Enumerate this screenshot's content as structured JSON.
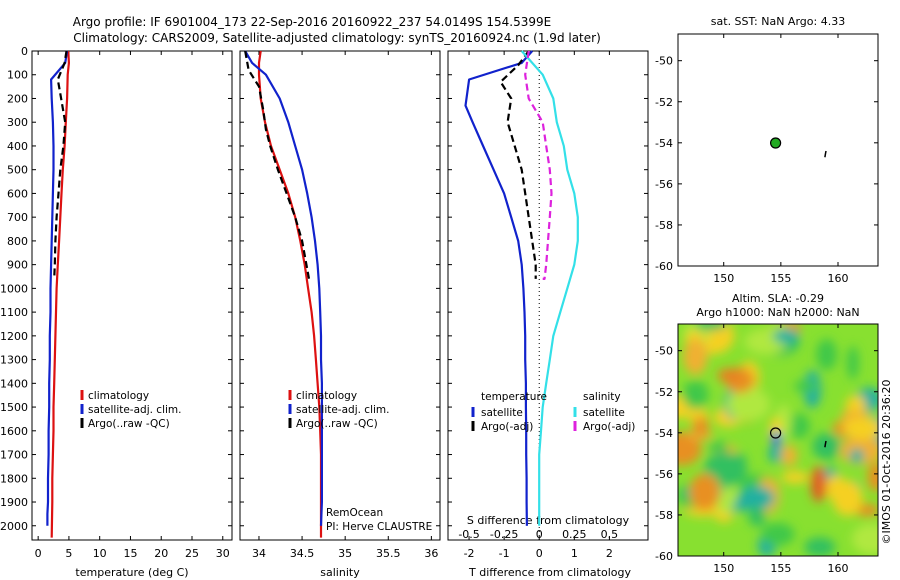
{
  "header": {
    "line1": "Argo profile: IF 6901004_173 22-Sep-2016 20160922_237 54.0149S 154.5399E",
    "line2": "Climatology: CARS2009, Satellite-adjusted climatology: synTS_20160924.nc (1.9d later)"
  },
  "depth_ticks": [
    "0",
    "100",
    "200",
    "300",
    "400",
    "500",
    "600",
    "700",
    "800",
    "900",
    "1000",
    "1100",
    "1200",
    "1300",
    "1400",
    "1500",
    "1600",
    "1700",
    "1800",
    "1900",
    "2000"
  ],
  "colors": {
    "climatology": "#dd1111",
    "satellite": "#1122cc",
    "argo": "#000000",
    "satellite_salinity": "#33e0e8",
    "argo_adj_salinity": "#dd22dd",
    "map_marker": "#22aa22"
  },
  "chart_data": [
    {
      "type": "line",
      "name": "temperature-profile",
      "xlabel": "temperature (deg C)",
      "ylabel": "",
      "xlim": [
        -1,
        31.5
      ],
      "ylim": [
        2060,
        0
      ],
      "xticks": [
        "0",
        "5",
        "10",
        "15",
        "20",
        "25",
        "30"
      ],
      "xtick_values": [
        0,
        5,
        10,
        15,
        20,
        25,
        30
      ],
      "legend": [
        "climatology",
        "satellite-adj. clim.",
        "Argo(..raw -QC)"
      ],
      "legend_placement": "lower-center",
      "series": [
        {
          "name": "climatology",
          "style": "solid",
          "x": [
            4.9,
            5.0,
            4.8,
            4.7,
            4.5,
            4.3,
            4.0,
            3.8,
            3.6,
            3.4,
            3.2,
            3.0,
            2.9,
            2.8,
            2.7,
            2.6,
            2.5,
            2.5,
            2.4,
            2.3,
            2.3,
            2.2
          ],
          "y": [
            0,
            50,
            100,
            200,
            300,
            400,
            500,
            600,
            700,
            800,
            900,
            1000,
            1100,
            1200,
            1300,
            1400,
            1500,
            1600,
            1700,
            1800,
            1900,
            2050
          ]
        },
        {
          "name": "satellite-adj. clim.",
          "style": "solid",
          "x": [
            4.7,
            4.4,
            2.1,
            2.2,
            2.4,
            2.5,
            2.5,
            2.4,
            2.3,
            2.2,
            2.1,
            2.0,
            2.0,
            1.9,
            1.9,
            1.8,
            1.8,
            1.7,
            1.7,
            1.6,
            1.6,
            1.5,
            1.5
          ],
          "y": [
            0,
            50,
            120,
            200,
            300,
            400,
            500,
            600,
            700,
            800,
            900,
            1000,
            1100,
            1200,
            1300,
            1400,
            1500,
            1600,
            1700,
            1800,
            1900,
            1950,
            2000
          ]
        },
        {
          "name": "Argo(..raw -QC)",
          "style": "dashed",
          "x": [
            4.6,
            4.3,
            3.2,
            3.6,
            4.4,
            4.1,
            3.6,
            3.3,
            3.0,
            2.8,
            2.7,
            2.6
          ],
          "y": [
            0,
            50,
            120,
            180,
            300,
            400,
            500,
            600,
            700,
            800,
            900,
            960
          ]
        }
      ]
    },
    {
      "type": "line",
      "name": "salinity-profile",
      "xlabel": "salinity",
      "ylabel": "",
      "xlim": [
        33.78,
        36.1
      ],
      "ylim": [
        2060,
        0
      ],
      "xticks": [
        "34",
        "34.5",
        "35",
        "35.5",
        "36"
      ],
      "xtick_values": [
        34,
        34.5,
        35,
        35.5,
        36
      ],
      "legend": [
        "climatology",
        "satellite-adj. clim.",
        "Argo(..raw -QC)"
      ],
      "legend_placement": "lower-center",
      "annotation": [
        "RemOcean",
        "PI: Herve CLAUSTRE"
      ],
      "series": [
        {
          "name": "climatology",
          "style": "solid",
          "x": [
            34.02,
            34.0,
            34.0,
            34.02,
            34.07,
            34.14,
            34.24,
            34.34,
            34.42,
            34.48,
            34.53,
            34.57,
            34.61,
            34.64,
            34.66,
            34.68,
            34.7,
            34.71,
            34.72,
            34.72,
            34.72,
            34.72
          ],
          "y": [
            0,
            50,
            100,
            200,
            300,
            400,
            500,
            600,
            700,
            800,
            900,
            1000,
            1100,
            1200,
            1300,
            1400,
            1500,
            1600,
            1700,
            1800,
            1900,
            2050
          ]
        },
        {
          "name": "satellite-adj. clim.",
          "style": "solid",
          "x": [
            33.84,
            33.92,
            34.08,
            34.24,
            34.34,
            34.42,
            34.5,
            34.56,
            34.61,
            34.65,
            34.68,
            34.7,
            34.71,
            34.72,
            34.72,
            34.73,
            34.73,
            34.73,
            34.73,
            34.73,
            34.73,
            34.72
          ],
          "y": [
            0,
            50,
            100,
            200,
            300,
            400,
            500,
            600,
            700,
            800,
            900,
            1000,
            1100,
            1200,
            1300,
            1400,
            1500,
            1600,
            1700,
            1800,
            1900,
            2000
          ]
        },
        {
          "name": "Argo(..raw -QC)",
          "style": "dashed",
          "x": [
            33.84,
            33.88,
            34.0,
            34.05,
            34.08,
            34.13,
            34.22,
            34.32,
            34.42,
            34.5,
            34.55,
            34.58
          ],
          "y": [
            0,
            80,
            150,
            250,
            330,
            400,
            500,
            600,
            700,
            800,
            900,
            960
          ]
        }
      ]
    },
    {
      "type": "line",
      "name": "difference-profile",
      "xlabel": "T difference from climatology",
      "xlabel_top": "S difference from climatology",
      "ylabel": "",
      "xlim": [
        -2.6,
        3.1
      ],
      "ylim": [
        2060,
        0
      ],
      "xticks": [
        "-2",
        "-1",
        "0",
        "1",
        "2"
      ],
      "xtick_values": [
        -2,
        -1,
        0,
        1,
        2
      ],
      "xticks_salinity": [
        "-0.5",
        "-0.25",
        "0",
        "0.25",
        "0.5"
      ],
      "xticks_salinity_values": [
        -0.5,
        -0.25,
        0,
        0.25,
        0.5
      ],
      "legend_headers": [
        "temperature",
        "salinity"
      ],
      "legend": [
        "satellite",
        "Argo(-adj)",
        "satellite",
        "Argo(-adj)"
      ],
      "legend_placement": "lower-center",
      "series": [
        {
          "name": "temperature satellite",
          "style": "solid",
          "x": [
            -0.2,
            -0.5,
            -2.0,
            -2.1,
            -1.9,
            -1.6,
            -1.3,
            -1.0,
            -0.8,
            -0.6,
            -0.5,
            -0.45,
            -0.42,
            -0.4,
            -0.4,
            -0.38,
            -0.38,
            -0.37,
            -0.37,
            -0.36,
            -0.36,
            -0.35
          ],
          "y": [
            0,
            50,
            120,
            230,
            300,
            400,
            500,
            600,
            700,
            800,
            900,
            1000,
            1100,
            1200,
            1300,
            1400,
            1500,
            1600,
            1700,
            1800,
            1900,
            2000
          ]
        },
        {
          "name": "temperature Argo(-adj)",
          "style": "dashed",
          "x": [
            -0.3,
            -0.6,
            -1.1,
            -0.8,
            -0.9,
            -0.7,
            -0.5,
            -0.4,
            -0.3,
            -0.2,
            -0.1,
            -0.1
          ],
          "y": [
            0,
            60,
            130,
            200,
            300,
            400,
            500,
            600,
            700,
            800,
            900,
            960
          ]
        },
        {
          "name": "salinity satellite",
          "style": "solid",
          "x": [
            -0.5,
            0.1,
            0.4,
            0.5,
            0.7,
            0.8,
            1.0,
            1.1,
            1.1,
            1.0,
            0.8,
            0.6,
            0.4,
            0.3,
            0.2,
            0.1,
            0.05,
            0.0,
            0.0,
            0.0,
            0.0
          ],
          "y": [
            0,
            100,
            200,
            300,
            400,
            500,
            600,
            700,
            800,
            900,
            1000,
            1100,
            1200,
            1300,
            1400,
            1500,
            1600,
            1700,
            1800,
            1900,
            2000
          ]
        },
        {
          "name": "salinity Argo(-adj)",
          "style": "dashed",
          "x": [
            -0.3,
            -0.4,
            -0.3,
            0.1,
            0.2,
            0.3,
            0.35,
            0.3,
            0.25,
            0.2,
            0.15,
            0.1
          ],
          "y": [
            0,
            100,
            200,
            300,
            400,
            500,
            600,
            700,
            800,
            900,
            960,
            960
          ]
        }
      ]
    },
    {
      "type": "scatter",
      "name": "sst-position-map",
      "title": "sat. SST: NaN Argo: 4.33",
      "xlim": [
        146,
        163.5
      ],
      "ylim": [
        -60,
        -48.7
      ],
      "xticks": [
        "150",
        "155",
        "160"
      ],
      "xtick_values": [
        150,
        155,
        160
      ],
      "yticks": [
        "-50",
        "-52",
        "-54",
        "-56",
        "-58",
        "-60"
      ],
      "ytick_values": [
        -50,
        -52,
        -54,
        -56,
        -58,
        -60
      ],
      "points": [
        {
          "name": "argo-float",
          "x": 154.54,
          "y": -54.01
        }
      ],
      "track": {
        "x": [
          158.85,
          158.9,
          158.95
        ],
        "y": [
          -54.7,
          -54.55,
          -54.4
        ]
      }
    },
    {
      "type": "heatmap",
      "name": "sla-map",
      "title": "Altim. SLA: -0.29",
      "subtitle": "Argo h1000: NaN h2000: NaN",
      "xlim": [
        146,
        163.5
      ],
      "ylim": [
        -60,
        -48.7
      ],
      "xticks": [
        "150",
        "155",
        "160"
      ],
      "xtick_values": [
        150,
        155,
        160
      ],
      "yticks": [
        "-50",
        "-52",
        "-54",
        "-56",
        "-58",
        "-60"
      ],
      "ytick_values": [
        -50,
        -52,
        -54,
        -56,
        -58,
        -60
      ],
      "points": [
        {
          "name": "argo-float",
          "x": 154.54,
          "y": -54.01
        }
      ],
      "side_label": "©IMOS 01-Oct-2016 20:36:20"
    }
  ]
}
